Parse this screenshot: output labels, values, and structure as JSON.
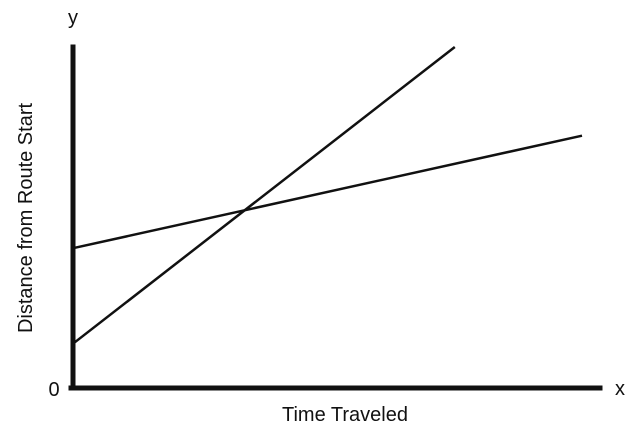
{
  "chart_data": {
    "type": "line",
    "title": "",
    "xlabel": "Time Traveled",
    "ylabel": "Distance from Route Start",
    "x_axis_letter": "x",
    "y_axis_letter": "y",
    "origin_label": "0",
    "xlim": [
      0,
      100
    ],
    "ylim": [
      0,
      100
    ],
    "grid": false,
    "legend": "none",
    "series": [
      {
        "points": [
          [
            0,
            13
          ],
          [
            75,
            100
          ]
        ]
      },
      {
        "points": [
          [
            0,
            41
          ],
          [
            100,
            74
          ]
        ]
      }
    ]
  },
  "colors": {
    "line": "#111111",
    "axis": "#111111",
    "background": "#ffffff"
  }
}
